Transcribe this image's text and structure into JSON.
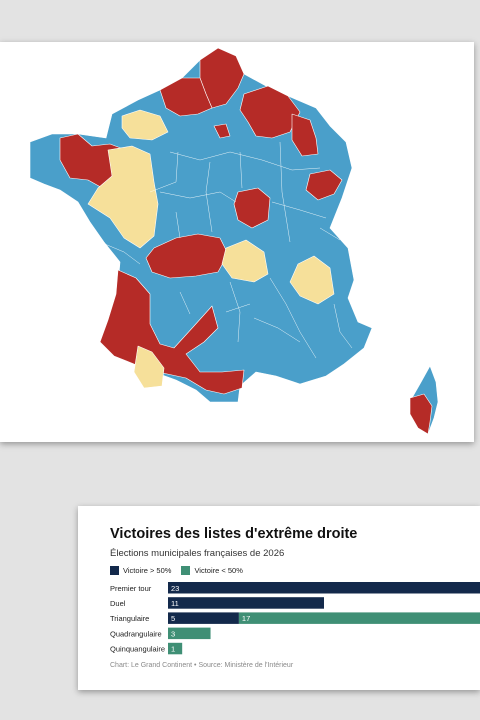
{
  "colors": {
    "map_blue": "#4a9fca",
    "map_red": "#b52b27",
    "map_yellow": "#f6e09a",
    "bar_dark": "#13294b",
    "bar_green": "#3f8f75"
  },
  "chart_data": {
    "type": "bar",
    "orientation": "horizontal",
    "stacked": true,
    "title": "Victoires des listes d'extrême droite",
    "subtitle": "Élections municipales françaises de 2026",
    "categories": [
      "Premier tour",
      "Duel",
      "Triangulaire",
      "Quadrangulaire",
      "Quinquangulaire"
    ],
    "series": [
      {
        "name": "Victoire > 50%",
        "color": "#13294b",
        "values": [
          23,
          11,
          5,
          0,
          0
        ]
      },
      {
        "name": "Victoire < 50%",
        "color": "#3f8f75",
        "values": [
          0,
          0,
          17,
          3,
          1
        ]
      }
    ],
    "legend_position": "top-left",
    "grid": false,
    "xlim": [
      0,
      22
    ],
    "source": "Chart: Le Grand Continent • Source: Ministère de l'Intérieur"
  }
}
